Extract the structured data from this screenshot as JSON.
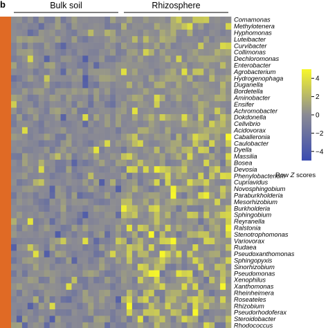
{
  "panel_label": "b",
  "chart_data": {
    "type": "heatmap",
    "title": "",
    "column_groups": [
      {
        "name": "Bulk soil",
        "count": 20
      },
      {
        "name": "Rhizosphere",
        "count": 20
      }
    ],
    "rows": [
      "Comamonas",
      "Methylotenera",
      "Hyphomonas",
      "Luteibacter",
      "Curvibacter",
      "Collimonas",
      "Dechloromonas",
      "Enterobacter",
      "Agrobacterium",
      "Hydrogenophaga",
      "Duganella",
      "Bordetella",
      "Aminobacter",
      "Ensifer",
      "Achromobacter",
      "Dokdonella",
      "Cellvibrio",
      "Acidovorax",
      "Caballeronia",
      "Caulobacter",
      "Dyella",
      "Massilia",
      "Bosea",
      "Devosia",
      "Phenylobacterium",
      "Cupriavidus",
      "Novosphingobium",
      "Paraburkholderia",
      "Mesorhizobium",
      "Burkholderia",
      "Sphingobium",
      "Reyranella",
      "Ralstonia",
      "Stenotrophomonas",
      "Variovorax",
      "Rudaea",
      "Pseudoxanthomonas",
      "Sphingopyxis",
      "Sinorhizobium",
      "Pseudomonas",
      "Xenophilus",
      "Xanthomonas",
      "Rheinheimera",
      "Roseateles",
      "Rhizobium",
      "Pseudorhodoferax",
      "Steroidobacter",
      "Rhodococcus"
    ],
    "legend": {
      "title_prefix": "Row ",
      "title_italic": "Z",
      "title_suffix": " scores",
      "ticks": [
        4,
        2,
        0,
        -2,
        -4
      ],
      "range": [
        -5,
        5
      ],
      "low_color": "#3a4bb0",
      "mid_color": "#8a8a94",
      "high_color": "#f7f72a"
    },
    "row_group_color": "#e06a25",
    "seed": 7
  }
}
